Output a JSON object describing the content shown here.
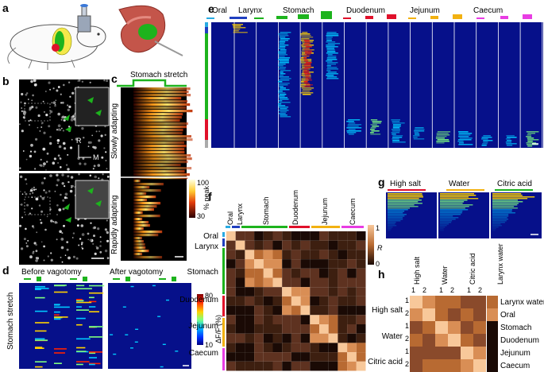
{
  "panels": {
    "a": "a",
    "b": "b",
    "c": "c",
    "d": "d",
    "e": "e",
    "f": "f",
    "g": "g",
    "h": "h"
  },
  "panel_b": {
    "baseline_label": "Baseline",
    "stretch_label": "Stomach stretch",
    "axis_r": "R",
    "axis_m": "M"
  },
  "panel_c": {
    "top_label": "Stomach stretch",
    "slow_label": "Slowly adapting",
    "rapid_label": "Rapidly adapting",
    "colorbar_ticks": [
      "100",
      "30"
    ],
    "colorbar_label": "% peak"
  },
  "panel_d": {
    "before_label": "Before vagotomy",
    "after_label": "After vagotomy",
    "row_label": "Stomach stretch",
    "colorbar_ticks": [
      "80",
      "10"
    ],
    "colorbar_label": "ΔF/F (%)"
  },
  "panel_e": {
    "categories": [
      "Oral",
      "Larynx",
      "Stomach",
      "Duodenum",
      "Jejunum",
      "Caecum"
    ]
  },
  "panel_f": {
    "top_labels": [
      "Oral",
      "Larynx",
      "Stomach",
      "Duodenum",
      "Jejunum",
      "Caecum"
    ],
    "left_labels": [
      "Oral",
      "Larynx",
      "Stomach",
      "Duodenum",
      "Jejunum",
      "Caecum"
    ],
    "colorbar_ticks": [
      "1",
      "0"
    ],
    "colorbar_label": "R"
  },
  "panel_g": {
    "labels": [
      "High salt",
      "Water",
      "Citric acid"
    ]
  },
  "panel_h": {
    "col_labels": [
      "High salt",
      "Water",
      "Citric acid",
      "Larynx water"
    ],
    "left_groups": [
      "High salt",
      "Water",
      "Citric acid"
    ],
    "trial_numbers": [
      "1",
      "2"
    ],
    "right_labels": [
      "Larynx water",
      "Oral",
      "Stomach",
      "Duodenum",
      "Jejunum",
      "Caecum"
    ]
  },
  "colors": {
    "oral": "#29abe2",
    "larynx": "#1f3fbf",
    "stomach": "#1db31d",
    "duodenum": "#e0102a",
    "jejunum": "#f2b111",
    "caecum": "#e83de3",
    "heatmap_bg": "#06108a"
  }
}
